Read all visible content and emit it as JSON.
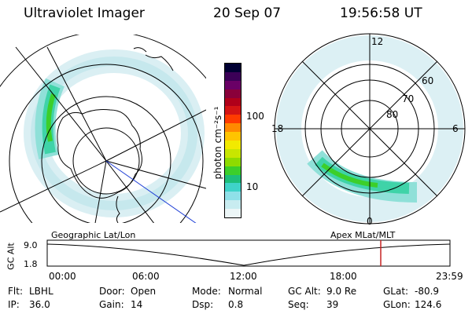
{
  "header": {
    "instrument": "Ultraviolet Imager",
    "date": "20 Sep 07",
    "time": "19:56:58 UT"
  },
  "geo_panel": {
    "label": "Geographic Lat/Lon"
  },
  "mag_panel": {
    "label": "Apex MLat/MLT",
    "mlt_labels": [
      "12",
      "18",
      "6",
      "0"
    ],
    "lat_labels": [
      "60",
      "70",
      "80"
    ]
  },
  "colorbar": {
    "unit_label": "photon cm⁻²s⁻¹",
    "ticks": [
      "100",
      "10"
    ],
    "colors": [
      "#000033",
      "#3b0057",
      "#6a0066",
      "#8a003a",
      "#b0001a",
      "#d41414",
      "#ff3b00",
      "#ff8a00",
      "#ffc400",
      "#f2ea00",
      "#c8e600",
      "#8fdb00",
      "#3ccf2a",
      "#1dbe7a",
      "#3fd3c9",
      "#8fe0e8",
      "#c8ecf0",
      "#ecf6f7"
    ]
  },
  "timeline": {
    "y_label": "GC Alt",
    "y_ticks": [
      "9.0",
      "1.8"
    ],
    "x_ticks": [
      "00:00",
      "06:00",
      "12:00",
      "18:00",
      "23:59"
    ]
  },
  "status": {
    "row1": [
      {
        "key": "Flt:",
        "value": "LBHL"
      },
      {
        "key": "Door:",
        "value": "Open"
      },
      {
        "key": "Mode:",
        "value": "Normal"
      },
      {
        "key": "GC Alt:",
        "value": "9.0 Re"
      },
      {
        "key": "GLat:",
        "value": "-80.9"
      }
    ],
    "row2": [
      {
        "key": "IP:",
        "value": "36.0"
      },
      {
        "key": "Gain:",
        "value": "14"
      },
      {
        "key": "Dsp:",
        "value": "0.8"
      },
      {
        "key": "Seq:",
        "value": "39"
      },
      {
        "key": "GLon:",
        "value": "124.6"
      }
    ]
  }
}
